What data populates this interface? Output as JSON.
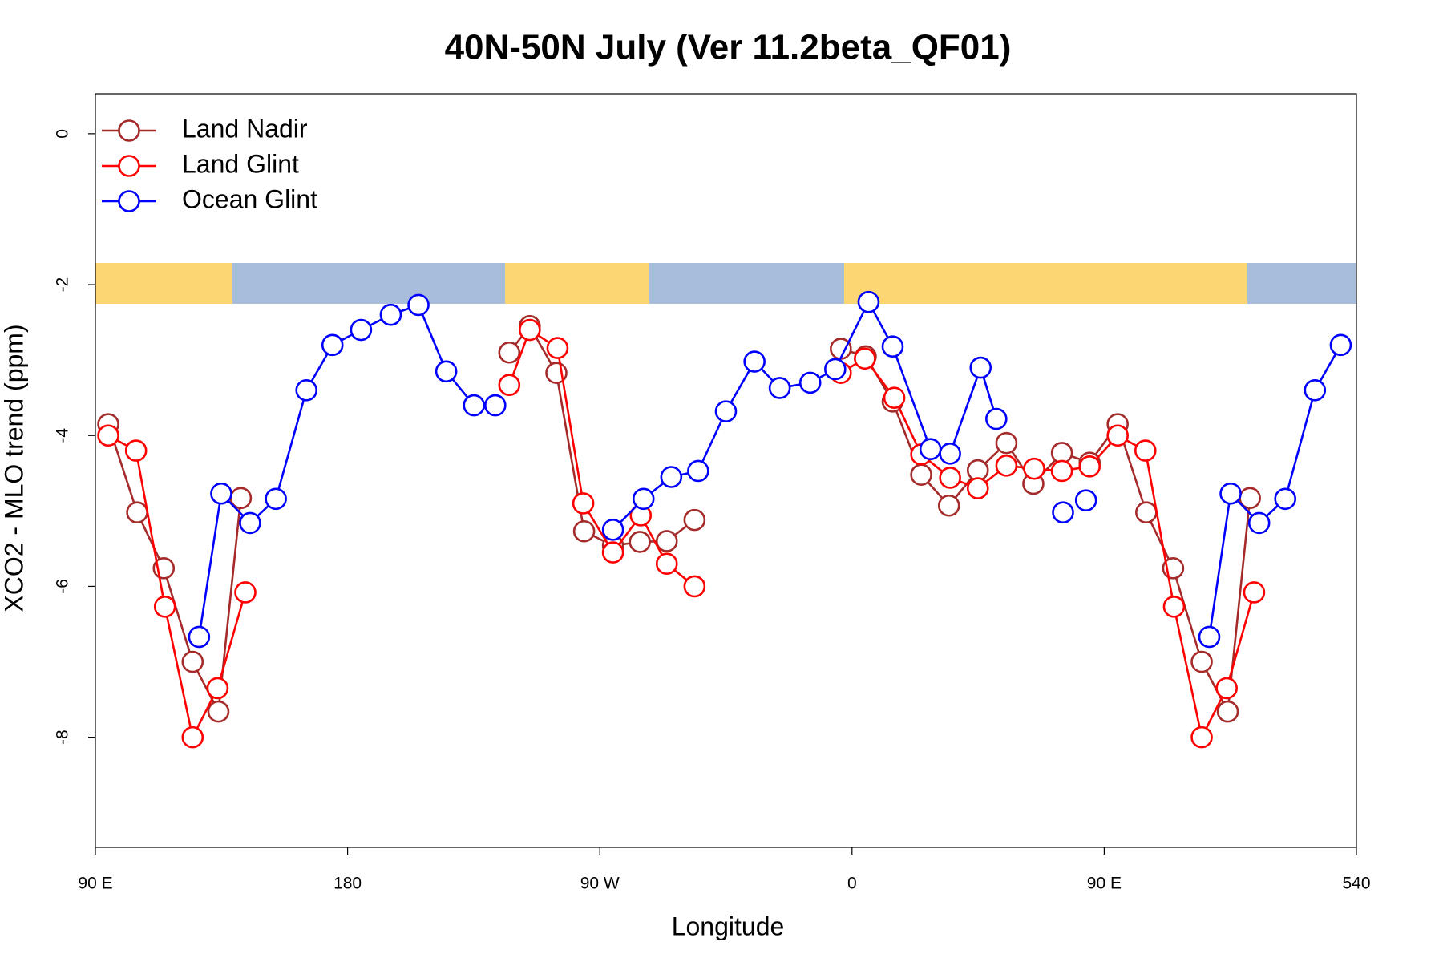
{
  "chart_data": {
    "type": "line",
    "title": "40N-50N July (Ver 11.2beta_QF01)",
    "xlabel": "Longitude",
    "ylabel": "XCO2 - MLO trend (ppm)",
    "xlim": [
      90,
      540
    ],
    "xticks": [
      {
        "value": 90,
        "label": "90 E"
      },
      180,
      {
        "value": 270,
        "label": "90 W"
      },
      {
        "value": 360,
        "label": "0"
      },
      {
        "value": 450,
        "label": "90 E"
      },
      540
    ],
    "ylim": [
      -9.46,
      0.53
    ],
    "yticks": [
      -8,
      -6,
      -4,
      -2,
      0
    ],
    "legend": "topleft",
    "series": [
      {
        "name": "Land Nadir",
        "color": "#a52a2a",
        "x": [
          94.6,
          104.9,
          114.4,
          124.7,
          133.9,
          141.9,
          190,
          237.7,
          245,
          254.5,
          264.4,
          274.7,
          284.3,
          293.9,
          303.8,
          330,
          356,
          364.9,
          374.5,
          384.7,
          394.6,
          404.9,
          415.1,
          424.7,
          434.9,
          444.8,
          454.8,
          465,
          474.6,
          484.8,
          494.1,
          502
        ],
        "values": [
          -3.85,
          -5.02,
          -5.76,
          -7.0,
          -7.66,
          -4.83,
          null,
          -2.9,
          -2.55,
          -3.17,
          -5.27,
          -5.46,
          -5.41,
          -5.4,
          -5.12,
          null,
          -2.85,
          -2.95,
          -3.55,
          -4.52,
          -4.93,
          -4.46,
          -4.1,
          -4.64,
          -4.23,
          -4.36,
          -3.85,
          -5.02,
          -5.76,
          -7.0,
          -7.66,
          -4.83
        ]
      },
      {
        "name": "Land Glint",
        "color": "#ff0000",
        "x": [
          94.6,
          104.5,
          114.8,
          124.7,
          133.6,
          143.5,
          190,
          237.7,
          245,
          254.9,
          264.1,
          274.7,
          284.6,
          293.9,
          303.8,
          330,
          356,
          364.6,
          375.1,
          384.7,
          395,
          404.9,
          415.1,
          425,
          434.9,
          444.8,
          454.8,
          464.7,
          474.9,
          484.8,
          493.7,
          503.5
        ],
        "values": [
          -4.0,
          -4.2,
          -6.27,
          -8.0,
          -7.35,
          -6.08,
          null,
          -3.33,
          -2.6,
          -2.84,
          -4.9,
          -5.55,
          -5.06,
          -5.7,
          -6.0,
          null,
          -3.17,
          -2.98,
          -3.5,
          -4.25,
          -4.56,
          -4.7,
          -4.4,
          -4.44,
          -4.47,
          -4.41,
          -4.0,
          -4.2,
          -6.27,
          -8.0,
          -7.35,
          -6.08
        ]
      },
      {
        "name": "Ocean Glint",
        "color": "#0000ff",
        "x": [
          127,
          134.9,
          145.2,
          154.4,
          165.3,
          174.6,
          184.8,
          195.4,
          205.3,
          215.2,
          225.1,
          232.7,
          250,
          274.7,
          285.6,
          295.5,
          305.1,
          315,
          325.2,
          334.2,
          345.1,
          354,
          365.9,
          374.5,
          388,
          395,
          405.9,
          411.5,
          420,
          435.3,
          440,
          443.5,
          460,
          487.5,
          495.1,
          505.3,
          514.6,
          525.2,
          534.4
        ],
        "values": [
          -6.67,
          -4.77,
          -5.16,
          -4.84,
          -3.4,
          -2.8,
          -2.6,
          -2.4,
          -2.27,
          -3.15,
          -3.6,
          -3.6,
          null,
          -5.25,
          -4.84,
          -4.55,
          -4.47,
          -3.68,
          -3.02,
          -3.37,
          -3.3,
          -3.12,
          -2.23,
          -2.82,
          -4.18,
          -4.24,
          -3.1,
          -3.78,
          null,
          -5.02,
          null,
          -4.86,
          null,
          -6.67,
          -4.77,
          -5.16,
          -4.84,
          -3.4,
          -2.8
        ]
      }
    ]
  }
}
